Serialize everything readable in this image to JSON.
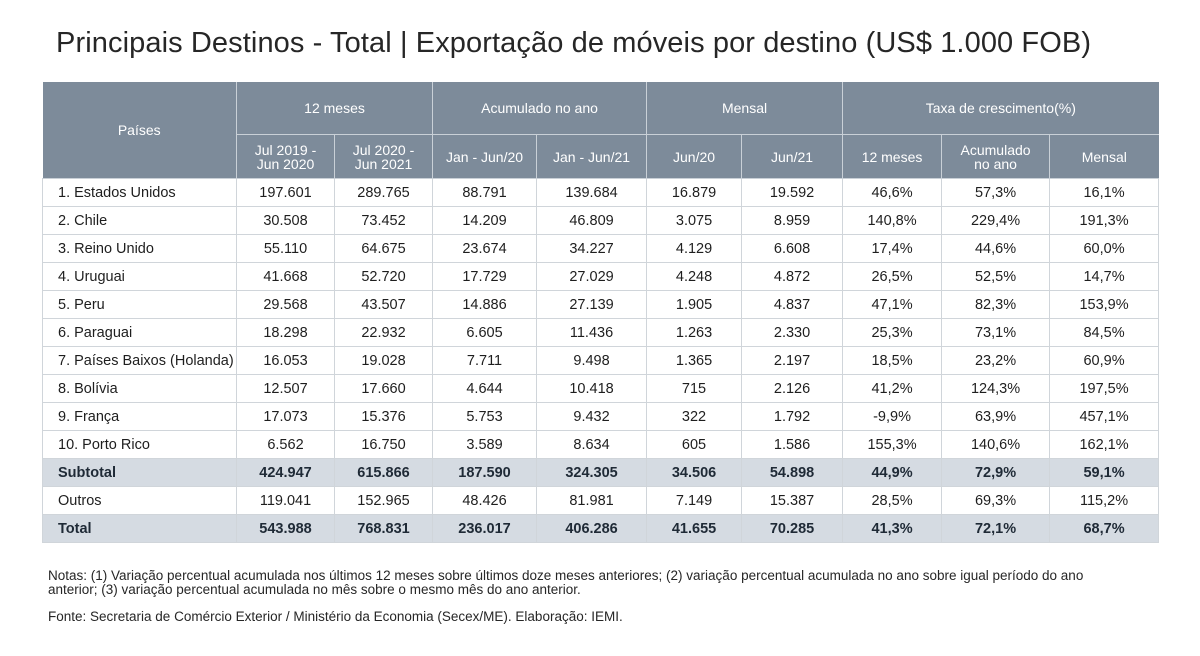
{
  "title": "Principais Destinos - Total | Exportação de móveis por destino (US$ 1.000 FOB)",
  "header": {
    "paises": "Países",
    "groups": [
      "12 meses",
      "Acumulado no ano",
      "Mensal",
      "Taxa de crescimento(%)"
    ],
    "sub": [
      [
        "Jul 2019 -",
        "Jun 2020"
      ],
      [
        "Jul 2020 -",
        "Jun 2021"
      ],
      [
        "Jan - Jun/20"
      ],
      [
        "Jan - Jun/21"
      ],
      [
        "Jun/20"
      ],
      [
        "Jun/21"
      ],
      [
        "12 meses"
      ],
      [
        "Acumulado",
        "no ano"
      ],
      [
        "Mensal"
      ]
    ]
  },
  "rows": [
    [
      "1. Estados Unidos",
      "197.601",
      "289.765",
      "88.791",
      "139.684",
      "16.879",
      "19.592",
      "46,6%",
      "57,3%",
      "16,1%"
    ],
    [
      "2. Chile",
      "30.508",
      "73.452",
      "14.209",
      "46.809",
      "3.075",
      "8.959",
      "140,8%",
      "229,4%",
      "191,3%"
    ],
    [
      "3. Reino Unido",
      "55.110",
      "64.675",
      "23.674",
      "34.227",
      "4.129",
      "6.608",
      "17,4%",
      "44,6%",
      "60,0%"
    ],
    [
      "4. Uruguai",
      "41.668",
      "52.720",
      "17.729",
      "27.029",
      "4.248",
      "4.872",
      "26,5%",
      "52,5%",
      "14,7%"
    ],
    [
      "5. Peru",
      "29.568",
      "43.507",
      "14.886",
      "27.139",
      "1.905",
      "4.837",
      "47,1%",
      "82,3%",
      "153,9%"
    ],
    [
      "6. Paraguai",
      "18.298",
      "22.932",
      "6.605",
      "11.436",
      "1.263",
      "2.330",
      "25,3%",
      "73,1%",
      "84,5%"
    ],
    [
      "7. Países Baixos (Holanda)",
      "16.053",
      "19.028",
      "7.711",
      "9.498",
      "1.365",
      "2.197",
      "18,5%",
      "23,2%",
      "60,9%"
    ],
    [
      "8. Bolívia",
      "12.507",
      "17.660",
      "4.644",
      "10.418",
      "715",
      "2.126",
      "41,2%",
      "124,3%",
      "197,5%"
    ],
    [
      "9. França",
      "17.073",
      "15.376",
      "5.753",
      "9.432",
      "322",
      "1.792",
      "-9,9%",
      "63,9%",
      "457,1%"
    ],
    [
      "10. Porto Rico",
      "6.562",
      "16.750",
      "3.589",
      "8.634",
      "605",
      "1.586",
      "155,3%",
      "140,6%",
      "162,1%"
    ]
  ],
  "subtotal": [
    "Subtotal",
    "424.947",
    "615.866",
    "187.590",
    "324.305",
    "34.506",
    "54.898",
    "44,9%",
    "72,9%",
    "59,1%"
  ],
  "outros": [
    "Outros",
    "119.041",
    "152.965",
    "48.426",
    "81.981",
    "7.149",
    "15.387",
    "28,5%",
    "69,3%",
    "115,2%"
  ],
  "total": [
    "Total",
    "543.988",
    "768.831",
    "236.017",
    "406.286",
    "41.655",
    "70.285",
    "41,3%",
    "72,1%",
    "68,7%"
  ],
  "notes": "Notas: (1) Variação percentual acumulada nos últimos 12 meses sobre últimos doze meses anteriores; (2) variação percentual acumulada no ano sobre igual período do ano anterior; (3) variação percentual acumulada no mês sobre o mesmo mês do ano anterior.",
  "source": "Fonte: Secretaria de Comércio Exterior / Ministério da Economia (Secex/ME). Elaboração: IEMI.",
  "colors": {
    "header_bg": "#7d8b9a",
    "subtotal_bg": "#d5dbe2"
  }
}
